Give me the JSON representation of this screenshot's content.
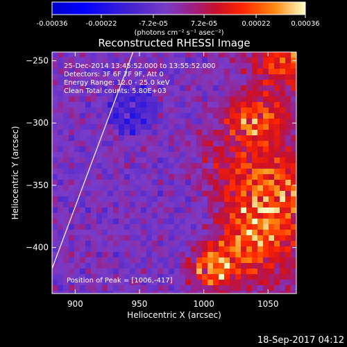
{
  "colorbar": {
    "tick_labels": [
      "-0.00036",
      "-0.00022",
      "-7.2e-05",
      "7.2e-05",
      "0.00022",
      "0.00036"
    ],
    "tick_values": [
      -0.00036,
      -0.00022,
      -7.2e-05,
      7.2e-05,
      0.00022,
      0.00036
    ],
    "range": [
      -0.00036,
      0.00036
    ],
    "units_label": "(photons cm⁻² s⁻¹ asec⁻²)"
  },
  "plot": {
    "title": "Reconstructed RHESSI Image",
    "xlabel": "Heliocentric X (arcsec)",
    "ylabel": "Heliocentric Y (arcsec)",
    "x_range": [
      882,
      1072
    ],
    "y_range": [
      -437,
      -243
    ],
    "x_ticks": [
      900,
      950,
      1000,
      1050
    ],
    "y_ticks": [
      -250,
      -300,
      -350,
      -400
    ],
    "x_tick_labels": [
      "900",
      "950",
      "1000",
      "1050"
    ],
    "y_tick_labels": [
      "−250",
      "−300",
      "−350",
      "−400"
    ]
  },
  "annotations": {
    "time_range": "25-Dec-2014 13:45:52.000 to 13:55:52.000",
    "detectors": "Detectors: 3F 6F 7F 9F, Att 0",
    "energy": "Energy Range: 12.0 - 25.0 keV",
    "method": "Clean    Total counts: 5.80E+03",
    "peak": "Position of Peak = [1006,-417]"
  },
  "footer": {
    "timestamp": "18-Sep-2017 04:12"
  },
  "limb_points": [
    [
      882,
      -417
    ],
    [
      945,
      -243
    ]
  ],
  "peak": [
    1006,
    -417
  ],
  "colors": {
    "background": "#000000",
    "text": "#ffffff",
    "cmap_low": "#0000ff",
    "cmap_mid": "#7a3cc7",
    "cmap_high": "#ff2400",
    "cmap_top": "#ffff80"
  }
}
